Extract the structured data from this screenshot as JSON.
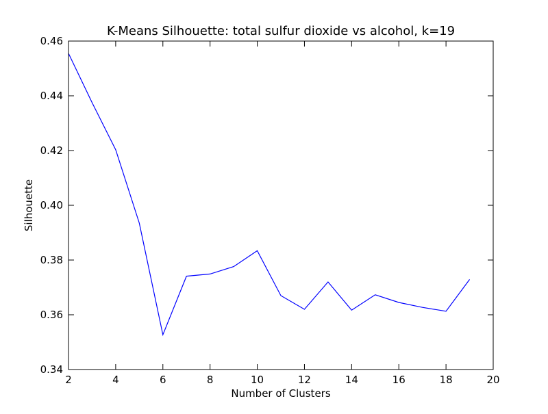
{
  "chart_data": {
    "type": "line",
    "title": "K-Means Silhouette: total sulfur dioxide vs alcohol, k=19",
    "xlabel": "Number of Clusters",
    "ylabel": "Silhouette",
    "xlim": [
      2,
      20
    ],
    "ylim": [
      0.34,
      0.46
    ],
    "x_ticks": [
      "2",
      "4",
      "6",
      "8",
      "10",
      "12",
      "14",
      "16",
      "18",
      "20"
    ],
    "y_ticks": [
      "0.34",
      "0.36",
      "0.38",
      "0.40",
      "0.42",
      "0.44",
      "0.46"
    ],
    "grid": false,
    "series": [
      {
        "color": "#0000ff",
        "x": [
          2,
          3,
          4,
          5,
          6,
          7,
          8,
          9,
          10,
          11,
          12,
          13,
          14,
          15,
          16,
          17,
          18,
          19
        ],
        "values": [
          0.4555,
          0.4375,
          0.4203,
          0.3935,
          0.3527,
          0.3741,
          0.3749,
          0.3776,
          0.3834,
          0.367,
          0.362,
          0.372,
          0.3617,
          0.3673,
          0.3645,
          0.3627,
          0.3613,
          0.3729
        ]
      }
    ]
  }
}
